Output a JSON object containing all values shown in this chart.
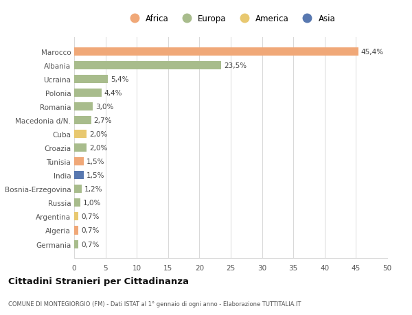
{
  "countries": [
    "Marocco",
    "Albania",
    "Ucraina",
    "Polonia",
    "Romania",
    "Macedonia d/N.",
    "Cuba",
    "Croazia",
    "Tunisia",
    "India",
    "Bosnia-Erzegovina",
    "Russia",
    "Argentina",
    "Algeria",
    "Germania"
  ],
  "values": [
    45.4,
    23.5,
    5.4,
    4.4,
    3.0,
    2.7,
    2.0,
    2.0,
    1.5,
    1.5,
    1.2,
    1.0,
    0.7,
    0.7,
    0.7
  ],
  "labels": [
    "45,4%",
    "23,5%",
    "5,4%",
    "4,4%",
    "3,0%",
    "2,7%",
    "2,0%",
    "2,0%",
    "1,5%",
    "1,5%",
    "1,2%",
    "1,0%",
    "0,7%",
    "0,7%",
    "0,7%"
  ],
  "colors": [
    "#f0a878",
    "#a8bc8c",
    "#a8bc8c",
    "#a8bc8c",
    "#a8bc8c",
    "#a8bc8c",
    "#e8c870",
    "#a8bc8c",
    "#f0a878",
    "#5878b0",
    "#a8bc8c",
    "#a8bc8c",
    "#e8c870",
    "#f0a878",
    "#a8bc8c"
  ],
  "legend_items": [
    {
      "label": "Africa",
      "color": "#f0a878"
    },
    {
      "label": "Europa",
      "color": "#a8bc8c"
    },
    {
      "label": "America",
      "color": "#e8c870"
    },
    {
      "label": "Asia",
      "color": "#5878b0"
    }
  ],
  "title": "Cittadini Stranieri per Cittadinanza",
  "subtitle": "COMUNE DI MONTEGIORGIO (FM) - Dati ISTAT al 1° gennaio di ogni anno - Elaborazione TUTTITALIA.IT",
  "xlim": [
    0,
    50
  ],
  "xticks": [
    0,
    5,
    10,
    15,
    20,
    25,
    30,
    35,
    40,
    45,
    50
  ],
  "bg_color": "#ffffff",
  "grid_color": "#d8d8d8"
}
